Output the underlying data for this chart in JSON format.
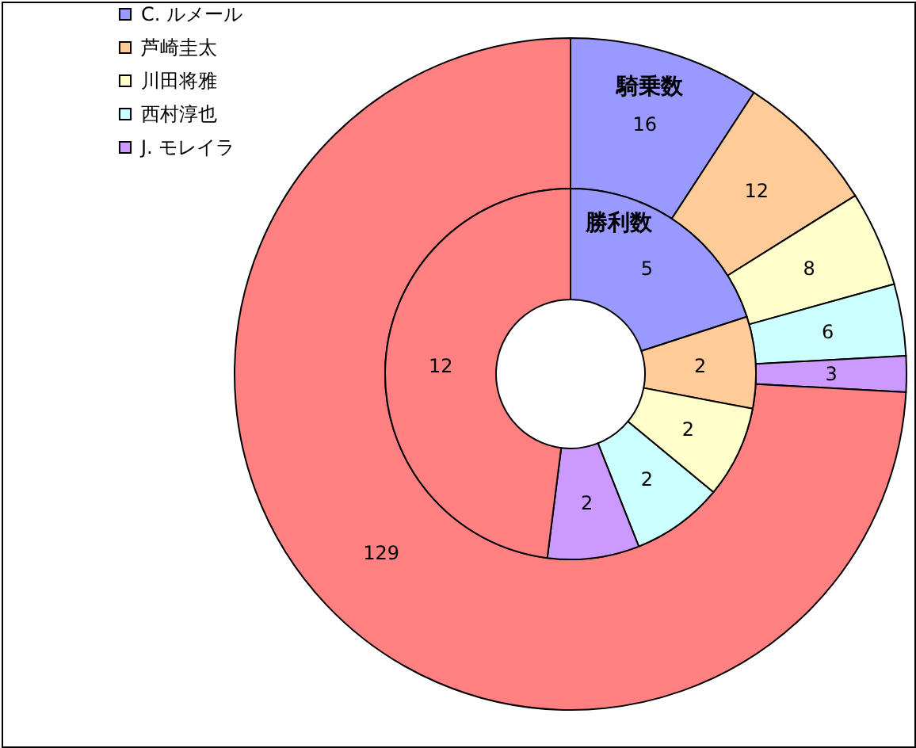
{
  "chart_data": {
    "type": "donut",
    "categories": [
      "C. ルメール",
      "芦崎圭太",
      "川田将雅",
      "西村淳也",
      "J. モレイラ",
      null
    ],
    "colors": [
      "#9999ff",
      "#ffcc99",
      "#ffffcc",
      "#ccffff",
      "#cc99ff",
      "#ff8080"
    ],
    "series": [
      {
        "name": "騎乗数",
        "values": [
          16,
          12,
          8,
          6,
          3,
          129
        ]
      },
      {
        "name": "勝利数",
        "values": [
          5,
          2,
          2,
          2,
          2,
          12
        ]
      }
    ],
    "data_labels": true,
    "legend": "top left"
  }
}
